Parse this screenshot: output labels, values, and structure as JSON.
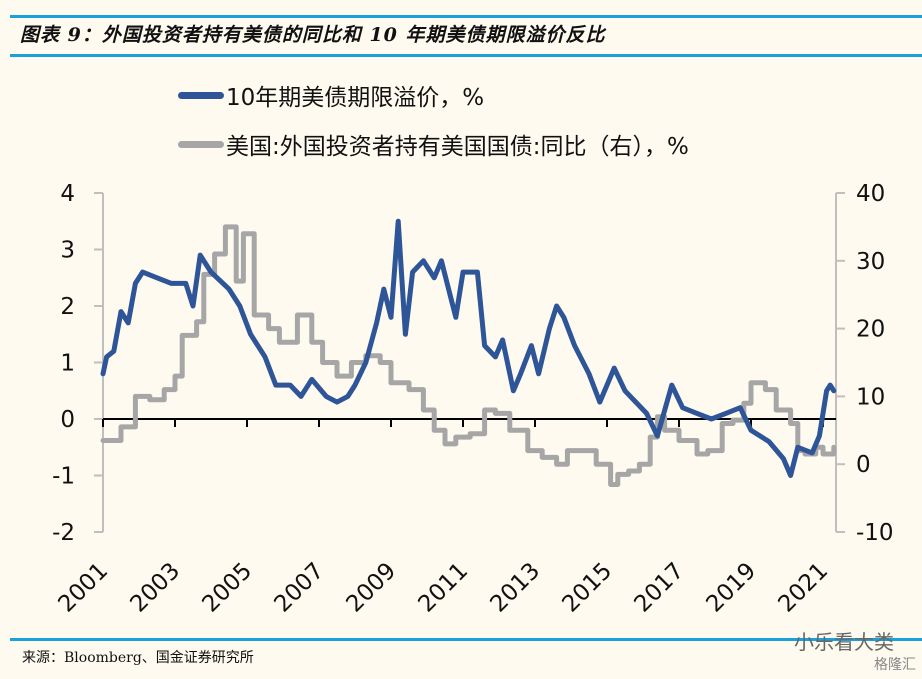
{
  "header": {
    "title": "图表 9：外国投资者持有美债的同比和 10 年期美债期限溢价反比"
  },
  "footer": {
    "source": "来源：Bloomberg、国金证券研究所",
    "watermark": "小乐看大类",
    "watermark2": "格隆汇"
  },
  "colors": {
    "accent_rule": "#1aa1dc",
    "series_blue": "#2e5597",
    "series_gray": "#a6a6a6",
    "axis": "#bfbfbf"
  },
  "chart_data": {
    "type": "line",
    "title": "外国投资者持有美债的同比和10年期美债期限溢价反比",
    "xlabel": "",
    "ylabel": "",
    "x_ticks": [
      "2001",
      "2003",
      "2005",
      "2007",
      "2009",
      "2011",
      "2013",
      "2015",
      "2017",
      "2019",
      "2021"
    ],
    "x_range": [
      2001,
      2021.4
    ],
    "left_axis": {
      "ticks": [
        "4",
        "3",
        "2",
        "1",
        "0",
        "-1",
        "-2"
      ],
      "ylim": [
        -2,
        4
      ]
    },
    "right_axis": {
      "ticks": [
        "40",
        "30",
        "20",
        "10",
        "0",
        "-10"
      ],
      "ylim": [
        -10,
        40
      ]
    },
    "legend_position": "top",
    "grid": false,
    "series": [
      {
        "name": "10年期美债期限溢价，%",
        "axis": "left",
        "x": [
          2001.0,
          2001.1,
          2001.3,
          2001.5,
          2001.7,
          2001.9,
          2002.1,
          2002.5,
          2002.9,
          2003.3,
          2003.5,
          2003.7,
          2004.0,
          2004.5,
          2004.8,
          2005.1,
          2005.5,
          2005.8,
          2006.2,
          2006.5,
          2006.8,
          2007.2,
          2007.5,
          2007.8,
          2008.0,
          2008.3,
          2008.6,
          2008.8,
          2009.0,
          2009.2,
          2009.4,
          2009.6,
          2009.9,
          2010.2,
          2010.4,
          2010.6,
          2010.8,
          2011.0,
          2011.4,
          2011.6,
          2011.9,
          2012.1,
          2012.4,
          2012.6,
          2012.9,
          2013.1,
          2013.4,
          2013.6,
          2013.8,
          2014.1,
          2014.5,
          2014.8,
          2015.2,
          2015.5,
          2015.8,
          2016.1,
          2016.4,
          2016.8,
          2017.1,
          2017.5,
          2017.9,
          2018.3,
          2018.7,
          2019.0,
          2019.5,
          2019.9,
          2020.1,
          2020.3,
          2020.7,
          2020.9,
          2021.1,
          2021.2,
          2021.3
        ],
        "values": [
          0.8,
          1.1,
          1.2,
          1.9,
          1.7,
          2.4,
          2.6,
          2.5,
          2.4,
          2.4,
          2.0,
          2.9,
          2.6,
          2.3,
          2.0,
          1.5,
          1.1,
          0.6,
          0.6,
          0.4,
          0.7,
          0.4,
          0.3,
          0.4,
          0.6,
          1.0,
          1.7,
          2.3,
          1.8,
          3.5,
          1.5,
          2.6,
          2.8,
          2.5,
          2.8,
          2.3,
          1.8,
          2.6,
          2.6,
          1.3,
          1.1,
          1.4,
          0.5,
          0.8,
          1.3,
          0.8,
          1.6,
          2.0,
          1.8,
          1.3,
          0.8,
          0.3,
          0.9,
          0.5,
          0.3,
          0.1,
          -0.3,
          0.6,
          0.2,
          0.1,
          0.0,
          0.1,
          0.2,
          -0.2,
          -0.4,
          -0.7,
          -1.0,
          -0.5,
          -0.6,
          -0.3,
          0.5,
          0.6,
          0.5
        ]
      },
      {
        "name": "美国:外国投资者持有美国国债:同比（右），%",
        "axis": "right",
        "x": [
          2001.0,
          2001.5,
          2001.9,
          2002.3,
          2002.7,
          2003.0,
          2003.2,
          2003.6,
          2003.8,
          2004.1,
          2004.4,
          2004.7,
          2004.9,
          2005.2,
          2005.6,
          2005.9,
          2006.4,
          2006.8,
          2007.1,
          2007.5,
          2007.9,
          2008.3,
          2008.7,
          2009.0,
          2009.5,
          2009.9,
          2010.2,
          2010.5,
          2010.8,
          2011.2,
          2011.6,
          2011.9,
          2012.3,
          2012.8,
          2013.2,
          2013.6,
          2013.9,
          2014.3,
          2014.7,
          2015.1,
          2015.3,
          2015.6,
          2015.9,
          2016.2,
          2016.4,
          2016.6,
          2017.0,
          2017.5,
          2017.8,
          2018.2,
          2018.5,
          2018.8,
          2019.0,
          2019.4,
          2019.7,
          2020.1,
          2020.3,
          2020.5,
          2020.8,
          2021.0,
          2021.3
        ],
        "values": [
          3.5,
          5.5,
          10,
          9.5,
          11,
          13,
          19,
          21,
          28,
          31,
          35,
          27,
          34,
          22,
          20,
          18,
          22,
          18,
          15,
          13,
          15,
          16,
          15,
          12,
          11,
          8,
          5,
          3,
          4,
          4.5,
          8,
          7.5,
          5,
          2,
          1,
          0,
          2,
          2,
          0,
          -3,
          -1.5,
          -1,
          0,
          4,
          7,
          5,
          3.5,
          1.5,
          2,
          6,
          6.5,
          9,
          12,
          11,
          8,
          6,
          2,
          1.5,
          2.5,
          1.5,
          2.5
        ]
      }
    ]
  }
}
